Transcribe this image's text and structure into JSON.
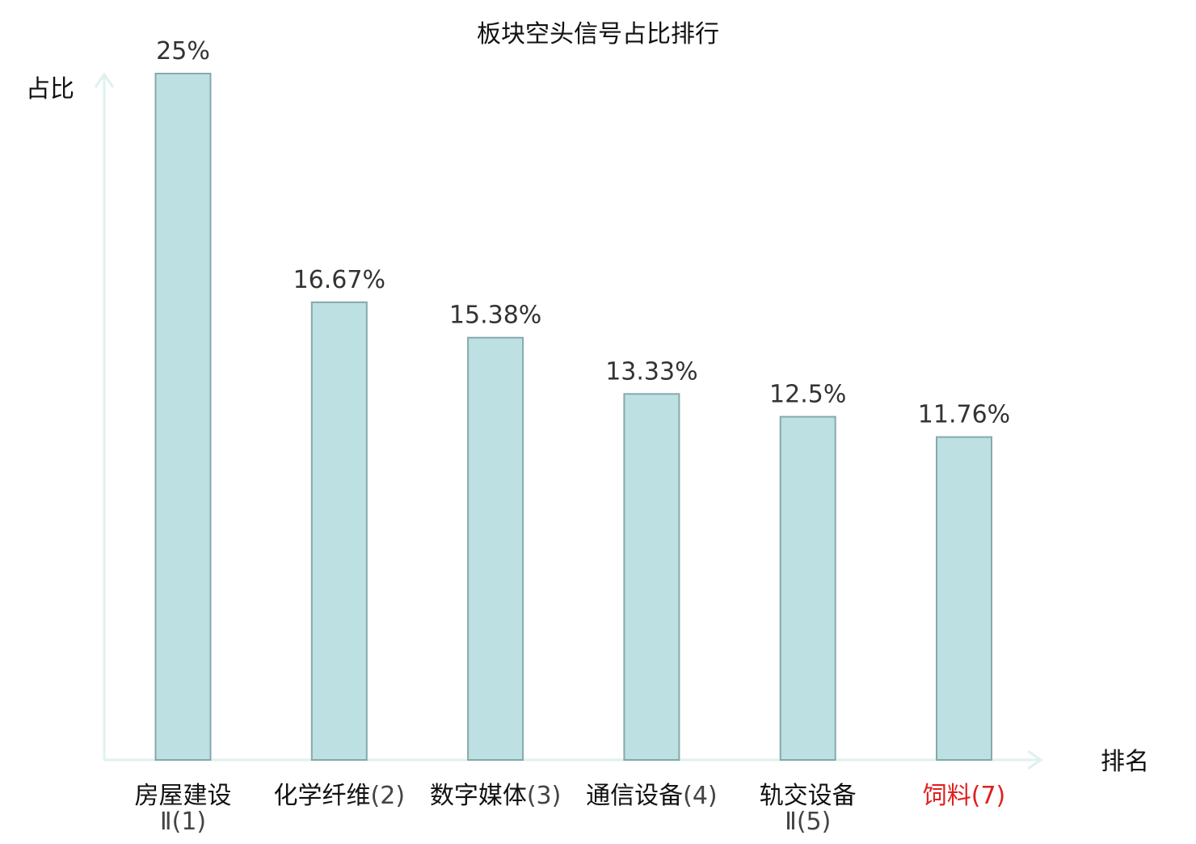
{
  "chart_data": {
    "type": "bar",
    "title": "板块空头信号占比排行",
    "ylabel": "占比",
    "xlabel": "排名",
    "ylim": [
      0,
      25
    ],
    "grid": false,
    "categories": [
      {
        "name": [
          "房屋建设",
          "Ⅱ"
        ],
        "rank": "(1)",
        "highlight": false
      },
      {
        "name": [
          "化学纤维"
        ],
        "rank": "(2)",
        "highlight": false
      },
      {
        "name": [
          "数字媒体"
        ],
        "rank": "(3)",
        "highlight": false
      },
      {
        "name": [
          "通信设备"
        ],
        "rank": "(4)",
        "highlight": false
      },
      {
        "name": [
          "轨交设备",
          "Ⅱ"
        ],
        "rank": "(5)",
        "highlight": false
      },
      {
        "name": [
          "饲料"
        ],
        "rank": "(7)",
        "highlight": true
      }
    ],
    "values": [
      25,
      16.67,
      15.38,
      13.33,
      12.5,
      11.76
    ],
    "value_labels": [
      "25%",
      "16.67%",
      "15.38%",
      "13.33%",
      "12.5%",
      "11.76%"
    ],
    "colors": {
      "bar_fill": "#bde0e2",
      "bar_stroke": "#86a9ab",
      "axis": "#dff1ef",
      "highlight_text": "#e02020"
    }
  }
}
